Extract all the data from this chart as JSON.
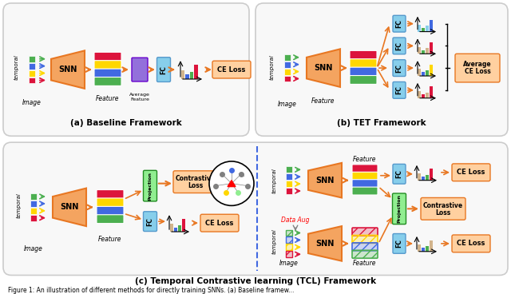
{
  "bg_color": "#ffffff",
  "panel_bg": "#f5f5f5",
  "title_fontsize": 7.5,
  "caption_fontsize": 6.5,
  "orange": "#F4A460",
  "orange_dark": "#E87722",
  "blue_box": "#87CEEB",
  "purple": "#9370DB",
  "green": "#4CAF50",
  "blue": "#4169E1",
  "yellow": "#FFD700",
  "red": "#DC143C",
  "caption": "Figure 1: An illustration of different methods for directly training SNNs. (a) Baseline framew...",
  "panel_a_title": "(a) Baseline Framework",
  "panel_b_title": "(b) TET Framework",
  "panel_c_title": "(c) Temporal Contrastive learning (TCL) Framework",
  "colors_4": [
    "#4CAF50",
    "#4169E1",
    "#FFD700",
    "#DC143C"
  ]
}
